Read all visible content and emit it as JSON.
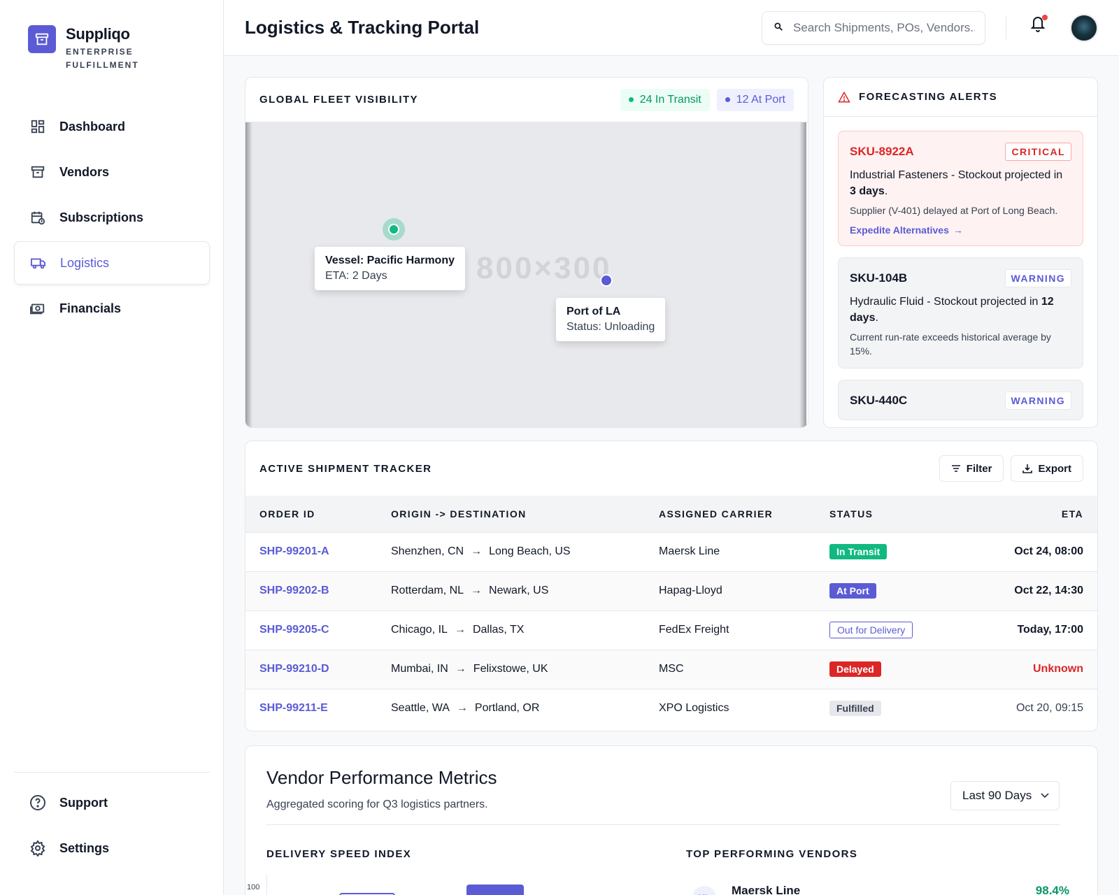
{
  "brand": {
    "name": "Suppliqo",
    "subtitle": "ENTERPRISE FULFILLMENT"
  },
  "nav": {
    "items": [
      {
        "label": "Dashboard",
        "icon": "dashboard-icon"
      },
      {
        "label": "Vendors",
        "icon": "archive-icon"
      },
      {
        "label": "Subscriptions",
        "icon": "calendar-icon"
      },
      {
        "label": "Logistics",
        "icon": "truck-icon",
        "active": true
      },
      {
        "label": "Financials",
        "icon": "money-icon"
      }
    ],
    "bottom": [
      {
        "label": "Support",
        "icon": "help-icon"
      },
      {
        "label": "Settings",
        "icon": "gear-icon"
      }
    ]
  },
  "header": {
    "title": "Logistics & Tracking Portal",
    "search_placeholder": "Search Shipments, POs, Vendors..."
  },
  "fleet": {
    "title": "GLOBAL FLEET VISIBILITY",
    "in_transit": "24 In Transit",
    "at_port": "12 At Port",
    "watermark": "800×300",
    "vessel_title": "Vessel: Pacific Harmony",
    "vessel_sub": "ETA: 2 Days",
    "port_title": "Port of LA",
    "port_sub": "Status: Unloading"
  },
  "alerts": {
    "title": "FORECASTING ALERTS",
    "items": [
      {
        "sku": "SKU-8922A",
        "level": "CRITICAL",
        "main": "Industrial Fasteners - Stockout projected in ",
        "days": "3 days",
        "sub": "Supplier (V-401) delayed at Port of Long Beach.",
        "link": "Expedite Alternatives"
      },
      {
        "sku": "SKU-104B",
        "level": "WARNING",
        "main": "Hydraulic Fluid - Stockout projected in ",
        "days": "12 days",
        "sub": "Current run-rate exceeds historical average by 15%."
      },
      {
        "sku": "SKU-440C",
        "level": "WARNING"
      }
    ]
  },
  "tracker": {
    "title": "ACTIVE SHIPMENT TRACKER",
    "filter_label": "Filter",
    "export_label": "Export",
    "columns": [
      "ORDER ID",
      "ORIGIN -> DESTINATION",
      "ASSIGNED CARRIER",
      "STATUS",
      "ETA"
    ],
    "rows": [
      {
        "id": "SHP-99201-A",
        "origin": "Shenzhen, CN",
        "dest": "Long Beach, US",
        "carrier": "Maersk Line",
        "status": "In Transit",
        "eta": "Oct 24, 08:00"
      },
      {
        "id": "SHP-99202-B",
        "origin": "Rotterdam, NL",
        "dest": "Newark, US",
        "carrier": "Hapag-Lloyd",
        "status": "At Port",
        "eta": "Oct 22, 14:30"
      },
      {
        "id": "SHP-99205-C",
        "origin": "Chicago, IL",
        "dest": "Dallas, TX",
        "carrier": "FedEx Freight",
        "status": "Out for Delivery",
        "eta": "Today, 17:00"
      },
      {
        "id": "SHP-99210-D",
        "origin": "Mumbai, IN",
        "dest": "Felixstowe, UK",
        "carrier": "MSC",
        "status": "Delayed",
        "eta": "Unknown"
      },
      {
        "id": "SHP-99211-E",
        "origin": "Seattle, WA",
        "dest": "Portland, OR",
        "carrier": "XPO Logistics",
        "status": "Fulfilled",
        "eta": "Oct 20, 09:15"
      }
    ]
  },
  "performance": {
    "title": "Vendor Performance Metrics",
    "subtitle": "Aggregated scoring for Q3 logistics partners.",
    "range": "Last 90 Days",
    "speed_title": "DELIVERY SPEED INDEX",
    "speed_axis_top": "100",
    "top_title": "TOP PERFORMING VENDORS",
    "top_vendor": {
      "initials": "ML",
      "name": "Maersk Line",
      "score": "98.4%"
    }
  },
  "colors": {
    "accent": "#5b5bd6",
    "success": "#10b981",
    "danger": "#dc2626"
  }
}
